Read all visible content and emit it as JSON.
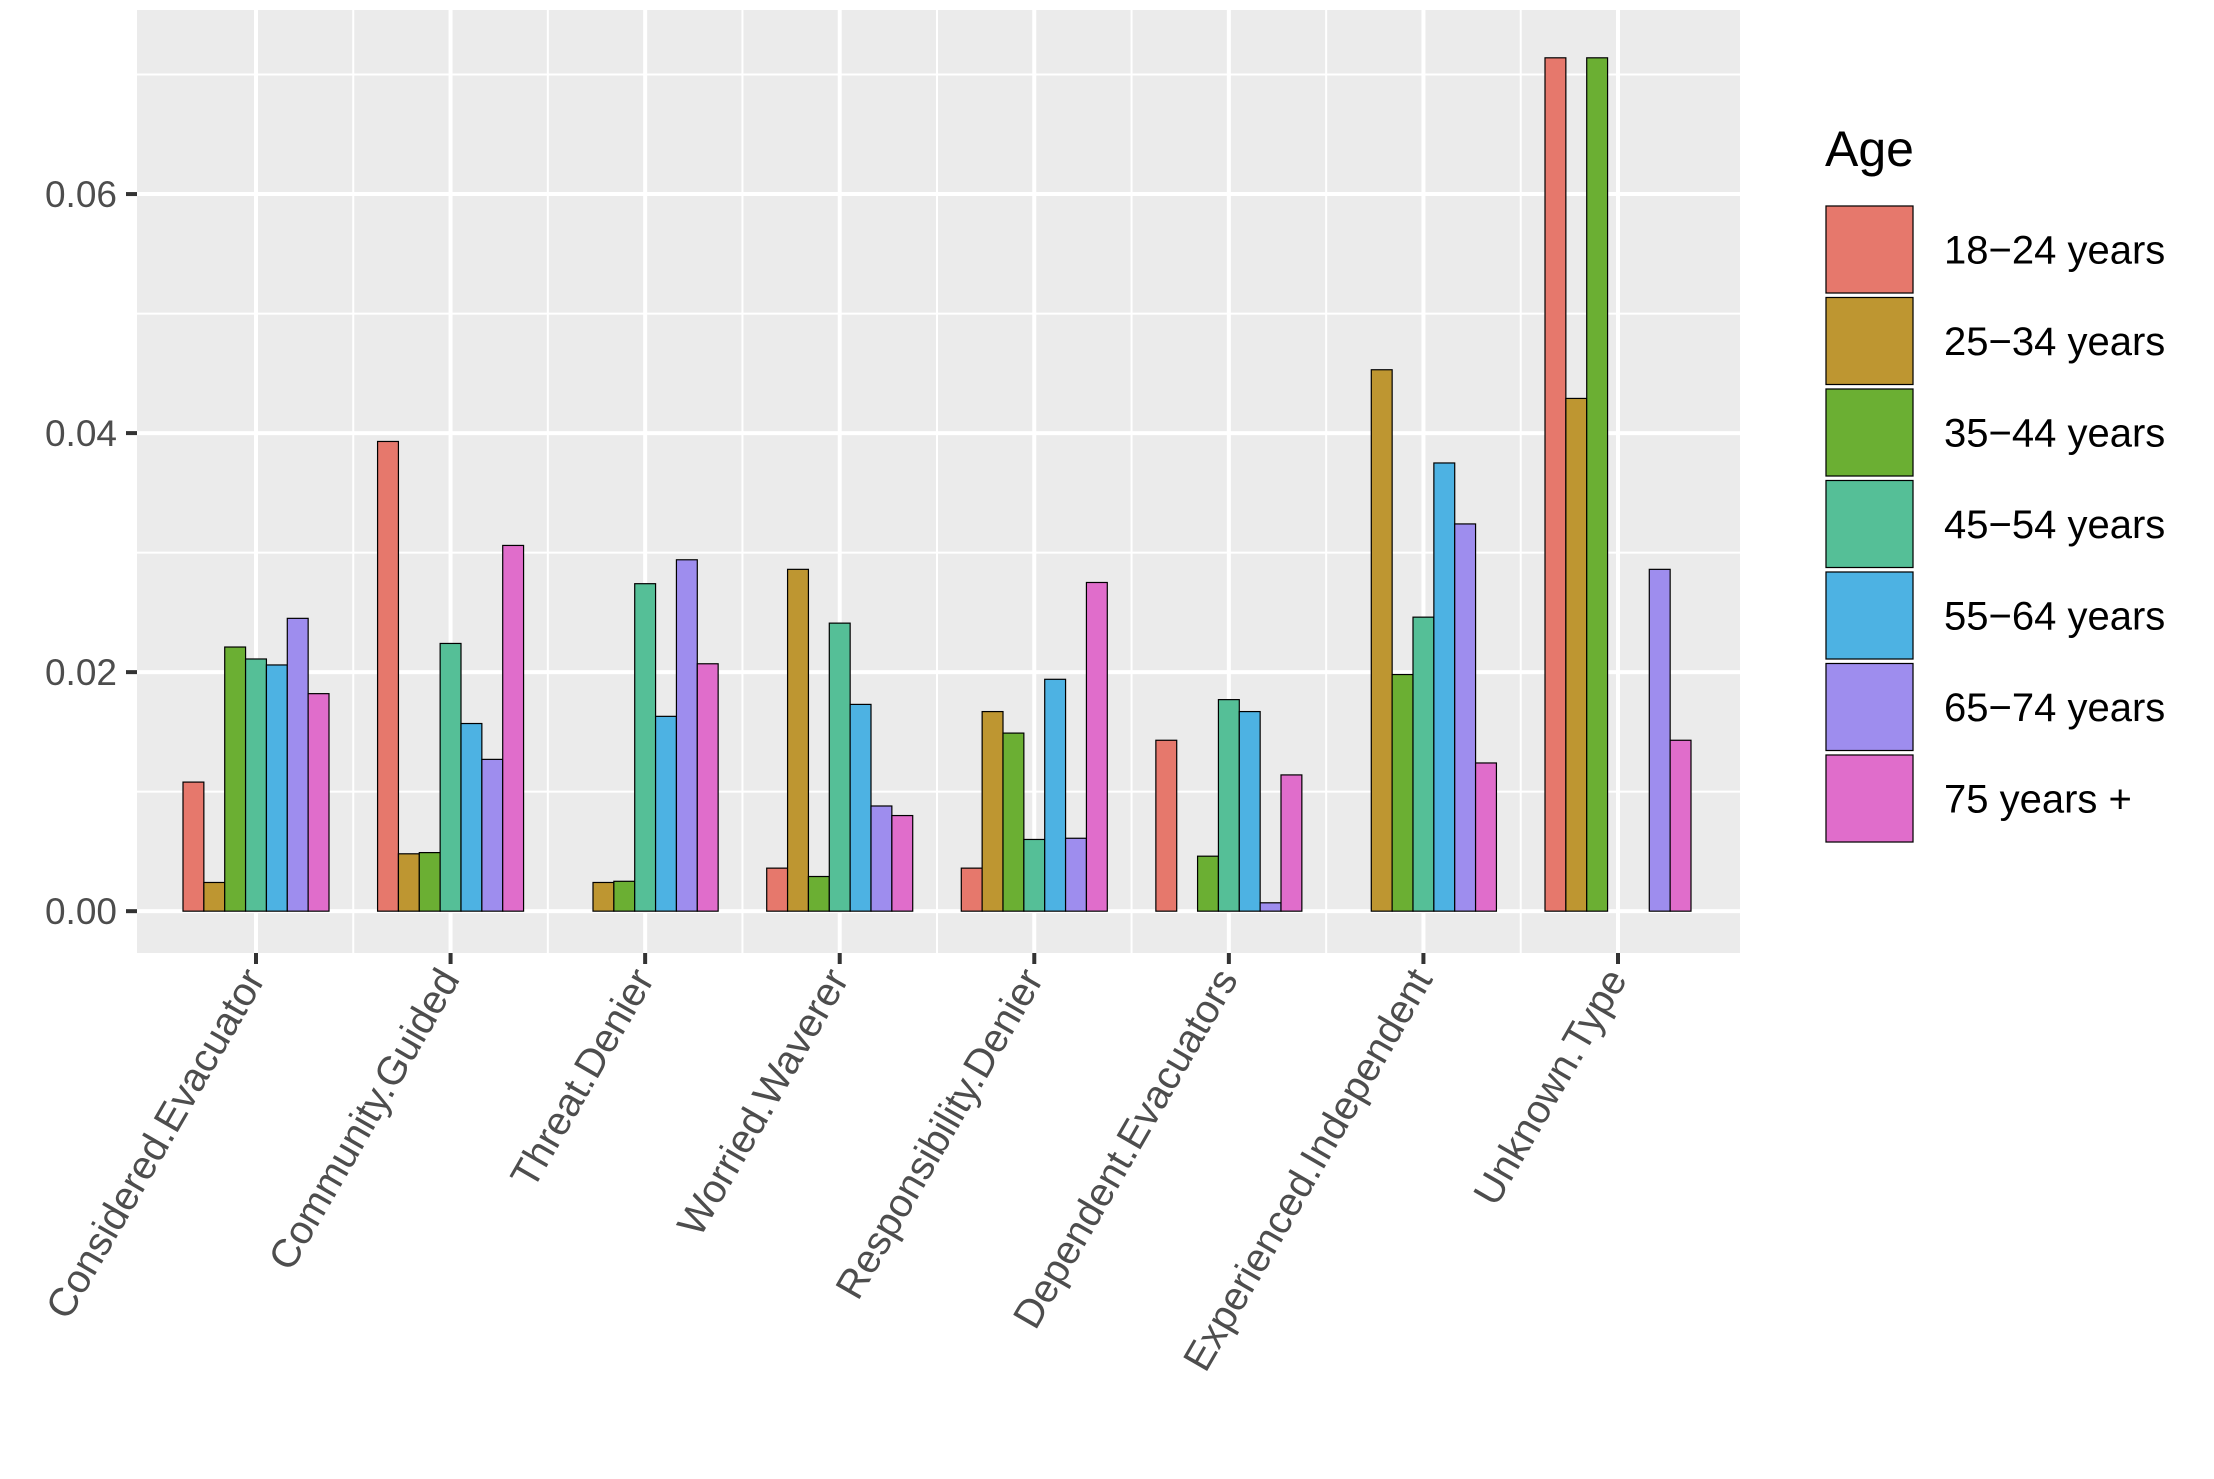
{
  "chart_data": {
    "type": "bar",
    "title": "",
    "xlabel": "",
    "ylabel": "",
    "ylim": [
      -0.0035,
      0.0754
    ],
    "yticks": [
      0.0,
      0.02,
      0.04,
      0.06
    ],
    "ytick_labels": [
      "0.00",
      "0.02",
      "0.04",
      "0.06"
    ],
    "grid": true,
    "legend": {
      "title": "Age",
      "position": "right"
    },
    "categories": [
      "Considered.Evacuator",
      "Community.Guided",
      "Threat.Denier",
      "Worried.Waverer",
      "Responsibility.Denier",
      "Dependent.Evacuators",
      "Experienced.Independent",
      "Unknown.Type"
    ],
    "series": [
      {
        "name": "18−24 years",
        "color": "#E6786C",
        "values": [
          0.0108,
          0.0393,
          0.0,
          0.0036,
          0.0036,
          0.0143,
          0.0,
          0.0714
        ]
      },
      {
        "name": "25−34 years",
        "color": "#BE9631",
        "values": [
          0.0024,
          0.0048,
          0.0024,
          0.0286,
          0.0167,
          0.0,
          0.0453,
          0.0429
        ]
      },
      {
        "name": "35−44 years",
        "color": "#6BAF33",
        "values": [
          0.0221,
          0.0049,
          0.0025,
          0.0029,
          0.0149,
          0.0046,
          0.0198,
          0.0714
        ]
      },
      {
        "name": "45−54 years",
        "color": "#55BF97",
        "values": [
          0.0211,
          0.0224,
          0.0274,
          0.0241,
          0.006,
          0.0177,
          0.0246,
          0.0
        ]
      },
      {
        "name": "55−64 years",
        "color": "#4DB2E3",
        "values": [
          0.0206,
          0.0157,
          0.0163,
          0.0173,
          0.0194,
          0.0167,
          0.0375,
          0.0
        ]
      },
      {
        "name": "65−74 years",
        "color": "#9E8DEE",
        "values": [
          0.0245,
          0.0127,
          0.0294,
          0.0088,
          0.0061,
          0.0007,
          0.0324,
          0.0286
        ]
      },
      {
        "name": "75 years +",
        "color": "#E06DCB",
        "values": [
          0.0182,
          0.0306,
          0.0207,
          0.008,
          0.0275,
          0.0114,
          0.0124,
          0.0143
        ]
      }
    ]
  }
}
